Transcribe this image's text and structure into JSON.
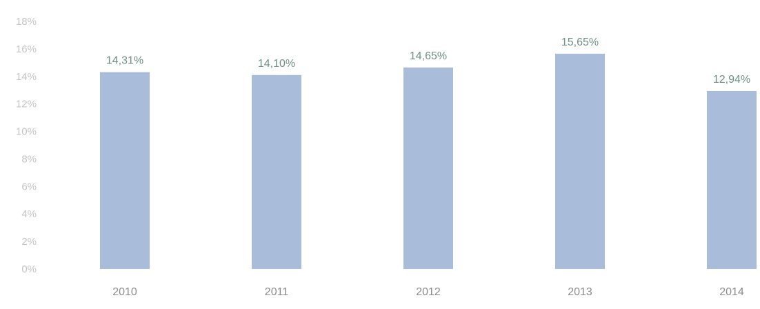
{
  "chart_data": {
    "type": "bar",
    "categories": [
      "2010",
      "2011",
      "2012",
      "2013",
      "2014"
    ],
    "values": [
      14.31,
      14.1,
      14.65,
      15.65,
      12.94
    ],
    "data_labels": [
      "14,31%",
      "14,10%",
      "14,65%",
      "15,65%",
      "12,94%"
    ],
    "yticks": [
      0,
      2,
      4,
      6,
      8,
      10,
      12,
      14,
      16,
      18
    ],
    "ytick_labels": [
      "0%",
      "2%",
      "4%",
      "6%",
      "8%",
      "10%",
      "12%",
      "14%",
      "16%",
      "18%"
    ],
    "ylim": [
      0,
      18
    ],
    "grid": false,
    "legend": "none",
    "colors": {
      "bar": "#a9bddb",
      "tick_text": "#c4c4c4",
      "category_text": "#8c8c8c",
      "data_label_text": "#6f8f86"
    }
  }
}
